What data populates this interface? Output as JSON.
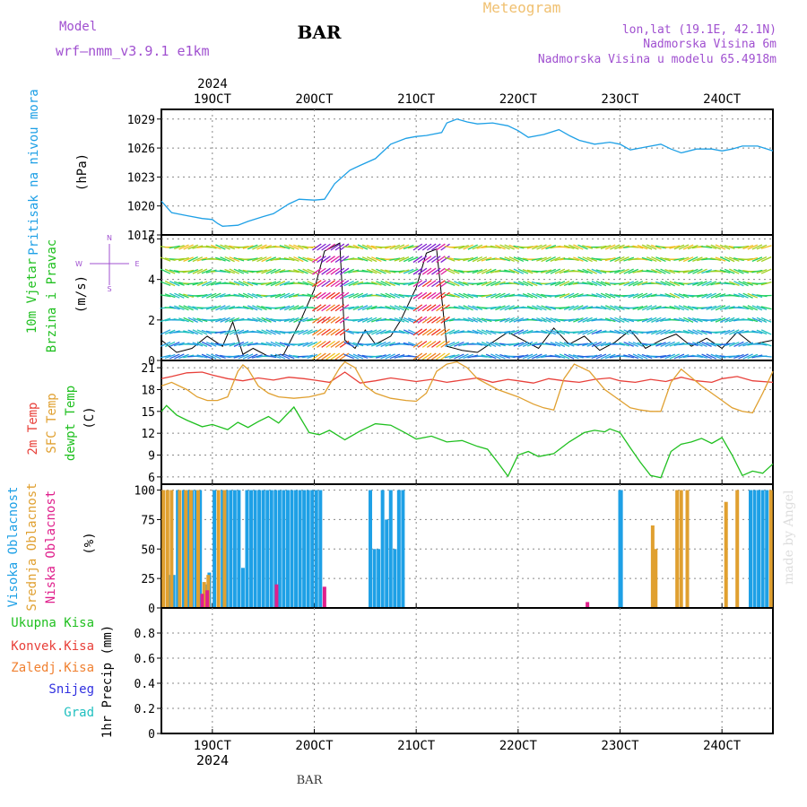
{
  "header": {
    "model_label": "Model",
    "model_name": "wrf—nmm_v3.9.1 e1km",
    "station": "BAR",
    "product": "Meteogram",
    "location": "lon,lat (19.1E, 42.1N)",
    "elevation": "Nadmorska Visina 6m",
    "model_elevation": "Nadmorska Visina u modelu 65.4918m"
  },
  "footer": {
    "station": "BAR",
    "watermark": "made by Angel"
  },
  "colors": {
    "pressure": "#1ea0e6",
    "temp_2m": "#e8403a",
    "temp_sfc": "#e0a030",
    "dewpoint": "#20c020",
    "cloud_high": "#1ea0e6",
    "cloud_mid": "#e0a030",
    "cloud_low": "#e0208c",
    "total_precip": "#20c020",
    "conv_precip": "#e8403a",
    "frozen_precip": "#f08030",
    "snow": "#3030e0",
    "graupel": "#20c0c0",
    "header_purple": "#a050d0",
    "title_orange": "#f0c070"
  },
  "chart_data": [
    {
      "type": "line",
      "panel": "pressure",
      "title": "",
      "ylabel": [
        "Pritisak na nivou mora",
        "(hPa)"
      ],
      "ylim": [
        1017,
        1030
      ],
      "yticks": [
        1017,
        1020,
        1023,
        1026,
        1029
      ],
      "xlim": [
        18.5,
        24.5
      ],
      "xtick_labels": [
        {
          "x": 19,
          "label": "19OCT"
        },
        {
          "x": 20,
          "label": "20OCT"
        },
        {
          "x": 21,
          "label": "21OCT"
        },
        {
          "x": 22,
          "label": "22OCT"
        },
        {
          "x": 23,
          "label": "23OCT"
        },
        {
          "x": 24,
          "label": "24OCT"
        }
      ],
      "year": "2024",
      "grid": true,
      "series": [
        {
          "key": "pressure",
          "x": [
            18.5,
            18.6,
            18.75,
            18.9,
            19.0,
            19.05,
            19.1,
            19.25,
            19.35,
            19.5,
            19.6,
            19.75,
            19.85,
            20.0,
            20.1,
            20.2,
            20.35,
            20.45,
            20.6,
            20.75,
            20.9,
            21.0,
            21.1,
            21.25,
            21.3,
            21.4,
            21.5,
            21.6,
            21.75,
            21.9,
            22.0,
            22.1,
            22.25,
            22.4,
            22.5,
            22.6,
            22.75,
            22.9,
            23.0,
            23.1,
            23.25,
            23.4,
            23.5,
            23.6,
            23.75,
            23.9,
            24.0,
            24.1,
            24.2,
            24.35,
            24.5
          ],
          "y": [
            1020.5,
            1019.3,
            1019.0,
            1018.7,
            1018.6,
            1018.2,
            1017.9,
            1018.0,
            1018.4,
            1018.9,
            1019.2,
            1020.2,
            1020.7,
            1020.6,
            1020.7,
            1022.3,
            1023.7,
            1024.2,
            1024.9,
            1026.4,
            1027.0,
            1027.2,
            1027.3,
            1027.6,
            1028.6,
            1029.0,
            1028.7,
            1028.5,
            1028.6,
            1028.3,
            1027.8,
            1027.1,
            1027.4,
            1027.9,
            1027.3,
            1026.8,
            1026.4,
            1026.6,
            1026.4,
            1025.8,
            1026.1,
            1026.4,
            1025.9,
            1025.5,
            1025.9,
            1025.9,
            1025.7,
            1025.9,
            1026.2,
            1026.2,
            1025.7
          ]
        }
      ]
    },
    {
      "type": "line",
      "panel": "wind",
      "ylabel": [
        "10m Vjetar",
        "Brzina i Pravac",
        "(m/s)"
      ],
      "direction_key": "N / E / S / W",
      "direction_legend": {
        "top": "N",
        "left": "W",
        "right": "E",
        "bottom": "S"
      },
      "ylim": [
        0,
        6.2
      ],
      "yticks": [
        0,
        2,
        4,
        6
      ],
      "xlim": [
        18.5,
        24.5
      ],
      "grid": true,
      "note": "wind barbs drawn at speed/level bands",
      "series": [
        {
          "key": "wind_speed",
          "x": [
            18.5,
            18.65,
            18.8,
            18.95,
            19.1,
            19.2,
            19.3,
            19.4,
            19.55,
            19.7,
            19.85,
            20.0,
            20.1,
            20.25,
            20.3,
            20.4,
            20.5,
            20.6,
            20.75,
            20.85,
            21.0,
            21.1,
            21.2,
            21.3,
            21.45,
            21.6,
            21.75,
            21.9,
            22.05,
            22.2,
            22.35,
            22.5,
            22.65,
            22.8,
            22.95,
            23.1,
            23.25,
            23.4,
            23.55,
            23.7,
            23.85,
            24.0,
            24.15,
            24.3,
            24.5
          ],
          "y": [
            1.0,
            0.4,
            0.6,
            1.2,
            0.7,
            1.9,
            0.3,
            0.6,
            0.2,
            0.3,
            1.8,
            3.5,
            5.4,
            5.8,
            1.0,
            0.6,
            1.5,
            0.8,
            1.2,
            2.0,
            3.6,
            5.3,
            5.5,
            0.7,
            0.5,
            0.4,
            0.9,
            1.4,
            1.0,
            0.6,
            1.6,
            0.8,
            1.2,
            0.5,
            0.9,
            1.5,
            0.6,
            1.0,
            1.3,
            0.7,
            1.1,
            0.6,
            1.4,
            0.8,
            1.0
          ]
        }
      ]
    },
    {
      "type": "line",
      "panel": "temperature",
      "ylabel": [
        "2m Temp",
        "SFC Temp",
        "dewpt Temp",
        "(C)"
      ],
      "ylim": [
        5,
        22
      ],
      "yticks": [
        6,
        9,
        12,
        15,
        18,
        21
      ],
      "xlim": [
        18.5,
        24.5
      ],
      "grid": true,
      "series": [
        {
          "key": "temp_2m",
          "x": [
            18.5,
            18.6,
            18.75,
            18.9,
            19.0,
            19.15,
            19.3,
            19.45,
            19.6,
            19.75,
            19.9,
            20.0,
            20.15,
            20.3,
            20.45,
            20.6,
            20.75,
            20.9,
            21.0,
            21.15,
            21.3,
            21.45,
            21.6,
            21.75,
            21.9,
            22.0,
            22.15,
            22.3,
            22.45,
            22.6,
            22.75,
            22.9,
            23.0,
            23.15,
            23.3,
            23.45,
            23.6,
            23.75,
            23.9,
            24.0,
            24.15,
            24.3,
            24.5
          ],
          "y": [
            19.5,
            19.8,
            20.3,
            20.4,
            20.0,
            19.5,
            19.2,
            19.6,
            19.3,
            19.7,
            19.5,
            19.3,
            19.0,
            20.4,
            18.9,
            19.2,
            19.6,
            19.3,
            19.1,
            19.4,
            19.0,
            19.3,
            19.6,
            19.0,
            19.4,
            19.2,
            18.9,
            19.5,
            19.2,
            19.0,
            19.4,
            19.6,
            19.2,
            19.0,
            19.4,
            19.1,
            19.7,
            19.2,
            19.0,
            19.5,
            19.8,
            19.2,
            19.0
          ]
        },
        {
          "key": "temp_sfc",
          "x": [
            18.5,
            18.6,
            18.75,
            18.85,
            18.95,
            19.05,
            19.15,
            19.25,
            19.3,
            19.35,
            19.45,
            19.55,
            19.65,
            19.8,
            19.95,
            20.1,
            20.25,
            20.3,
            20.4,
            20.5,
            20.6,
            20.75,
            20.9,
            21.0,
            21.1,
            21.2,
            21.3,
            21.4,
            21.5,
            21.6,
            21.8,
            22.0,
            22.15,
            22.25,
            22.35,
            22.45,
            22.55,
            22.7,
            22.85,
            23.0,
            23.1,
            23.2,
            23.3,
            23.4,
            23.5,
            23.6,
            23.8,
            24.0,
            24.1,
            24.2,
            24.3,
            24.4,
            24.5
          ],
          "y": [
            18.5,
            19.0,
            18.0,
            17.0,
            16.5,
            16.5,
            17.0,
            20.5,
            21.4,
            20.8,
            18.5,
            17.5,
            17.0,
            16.8,
            17.0,
            17.5,
            21.0,
            21.8,
            21.0,
            18.5,
            17.5,
            16.8,
            16.5,
            16.4,
            17.5,
            20.5,
            21.5,
            21.8,
            21.0,
            19.5,
            18.0,
            17.0,
            16.0,
            15.5,
            15.2,
            19.5,
            21.5,
            20.5,
            18.0,
            16.5,
            15.5,
            15.2,
            15.0,
            15.0,
            19.0,
            20.8,
            18.5,
            16.5,
            15.5,
            15.0,
            14.8,
            17.5,
            20.5
          ]
        },
        {
          "key": "dewpoint",
          "x": [
            18.5,
            18.55,
            18.65,
            18.75,
            18.9,
            19.0,
            19.15,
            19.25,
            19.35,
            19.45,
            19.55,
            19.65,
            19.8,
            19.95,
            20.05,
            20.15,
            20.3,
            20.45,
            20.6,
            20.75,
            20.9,
            21.0,
            21.15,
            21.3,
            21.45,
            21.6,
            21.7,
            21.8,
            21.9,
            22.0,
            22.1,
            22.2,
            22.35,
            22.5,
            22.65,
            22.75,
            22.85,
            22.9,
            23.0,
            23.1,
            23.2,
            23.3,
            23.4,
            23.5,
            23.6,
            23.7,
            23.8,
            23.9,
            24.0,
            24.1,
            24.2,
            24.3,
            24.4,
            24.5
          ],
          "y": [
            15.0,
            15.8,
            14.5,
            13.8,
            12.9,
            13.2,
            12.5,
            13.5,
            12.8,
            13.6,
            14.3,
            13.4,
            15.6,
            12.1,
            11.8,
            12.4,
            11.1,
            12.3,
            13.3,
            13.1,
            12.0,
            11.2,
            11.6,
            10.8,
            11.0,
            10.2,
            9.8,
            8.0,
            6.1,
            9.0,
            9.5,
            8.8,
            9.2,
            10.8,
            12.1,
            12.4,
            12.2,
            12.6,
            12.1,
            10.0,
            8.0,
            6.2,
            5.9,
            9.5,
            10.5,
            10.8,
            11.3,
            10.6,
            11.4,
            9.0,
            6.2,
            6.8,
            6.5,
            7.8
          ]
        }
      ]
    },
    {
      "type": "bar",
      "panel": "clouds",
      "ylabel": [
        "Visoka Oblacnost",
        "Srednja Oblacnost",
        "Niska Oblacnost",
        "(%)"
      ],
      "ylim": [
        0,
        105
      ],
      "yticks": [
        0,
        25,
        50,
        75,
        100
      ],
      "xlim": [
        18.5,
        24.5
      ],
      "grid": true,
      "series": [
        {
          "key": "cloud_high",
          "x": [
            18.58,
            18.62,
            18.66,
            18.72,
            18.76,
            18.8,
            18.84,
            18.88,
            18.93,
            18.97,
            19.02,
            19.1,
            19.14,
            19.18,
            19.22,
            19.26,
            19.3,
            19.34,
            19.38,
            19.42,
            19.46,
            19.5,
            19.54,
            19.58,
            19.62,
            19.66,
            19.7,
            19.74,
            19.78,
            19.82,
            19.86,
            19.9,
            19.94,
            19.98,
            20.02,
            20.06,
            20.55,
            20.59,
            20.63,
            20.67,
            20.71,
            20.75,
            20.79,
            20.83,
            20.87,
            23.0,
            23.01,
            24.28,
            24.32,
            24.36,
            24.4,
            24.44
          ],
          "values": [
            28,
            28,
            100,
            100,
            100,
            100,
            100,
            100,
            20,
            30,
            100,
            100,
            100,
            100,
            100,
            100,
            34,
            100,
            100,
            100,
            100,
            100,
            100,
            100,
            100,
            100,
            100,
            100,
            100,
            100,
            100,
            100,
            100,
            100,
            100,
            100,
            100,
            50,
            50,
            100,
            75,
            100,
            50,
            100,
            100,
            100,
            100,
            100,
            100,
            100,
            100,
            100
          ]
        },
        {
          "key": "cloud_mid",
          "x": [
            18.52,
            18.56,
            18.6,
            18.68,
            18.74,
            18.79,
            18.86,
            18.92,
            18.96,
            19.06,
            19.12,
            23.32,
            23.35,
            23.56,
            23.6,
            23.66,
            24.04,
            24.15,
            24.48
          ],
          "values": [
            100,
            100,
            100,
            100,
            100,
            100,
            100,
            22,
            28,
            100,
            100,
            70,
            50,
            100,
            100,
            100,
            90,
            100,
            100
          ]
        },
        {
          "key": "cloud_low",
          "x": [
            18.9,
            18.95,
            19.63,
            20.1,
            22.68
          ],
          "values": [
            12,
            15,
            20,
            18,
            5
          ]
        }
      ]
    },
    {
      "type": "line",
      "panel": "precipitation",
      "ylabel": [
        "1hr Precip (mm)"
      ],
      "ylim": [
        0,
        1.0
      ],
      "yticks": [
        0,
        0.2,
        0.4,
        0.6,
        0.8
      ],
      "xlim": [
        18.5,
        24.5
      ],
      "grid": true,
      "xtick_labels_bottom": [
        {
          "x": 19,
          "label": "19OCT"
        },
        {
          "x": 20,
          "label": "20OCT"
        },
        {
          "x": 21,
          "label": "21OCT"
        },
        {
          "x": 22,
          "label": "22OCT"
        },
        {
          "x": 23,
          "label": "23OCT"
        },
        {
          "x": 24,
          "label": "24OCT"
        }
      ],
      "year": "2024",
      "series": [
        {
          "key": "total_precip",
          "name": "Ukupna Kisa",
          "values": []
        },
        {
          "key": "conv_precip",
          "name": "Konvek.Kisa",
          "values": []
        },
        {
          "key": "frozen_precip",
          "name": "Zaledj.Kisa",
          "values": []
        },
        {
          "key": "snow",
          "name": "Snijeg",
          "values": []
        },
        {
          "key": "graupel",
          "name": "Grad",
          "values": []
        }
      ]
    }
  ]
}
